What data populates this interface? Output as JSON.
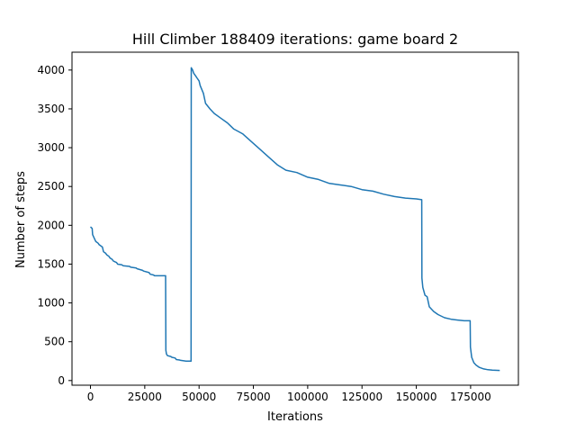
{
  "chart_data": {
    "type": "line",
    "title": "Hill Climber 188409 iterations: game board 2",
    "xlabel": "Iterations",
    "ylabel": "Number of steps",
    "xlim": [
      -8500,
      197000
    ],
    "ylim": [
      -60,
      4230
    ],
    "x_ticks": [
      0,
      25000,
      50000,
      75000,
      100000,
      125000,
      150000,
      175000
    ],
    "y_ticks": [
      0,
      500,
      1000,
      1500,
      2000,
      2500,
      3000,
      3500,
      4000
    ],
    "grid": false,
    "line_color": "#1f77b4",
    "series": [
      {
        "x": [
          0,
          800,
          1000,
          2000,
          2500,
          3500,
          4000,
          5500,
          6000,
          7000,
          7500,
          8500,
          9000,
          10000,
          10500,
          12000,
          12500,
          14500,
          15000,
          18000,
          18500,
          21000,
          21500,
          24000,
          24500,
          27000,
          27500,
          29000,
          29500,
          34600,
          34700,
          35000,
          35500,
          37000,
          37500,
          39000,
          39500,
          41000,
          41500,
          44000,
          44500,
          46300,
          46400,
          47000,
          47500,
          48500,
          49000,
          50000,
          50500,
          52000,
          53000,
          55000,
          57000,
          60000,
          63000,
          66000,
          70000,
          74000,
          78000,
          82000,
          86000,
          90000,
          95000,
          100000,
          105000,
          110000,
          115000,
          120000,
          125000,
          130000,
          135000,
          140000,
          145000,
          150000,
          152500,
          152600,
          153000,
          154000,
          155000,
          156000,
          158000,
          160000,
          163000,
          166000,
          169000,
          172000,
          174800,
          174900,
          175500,
          176500,
          177500,
          179000,
          181000,
          183000,
          185000,
          188409
        ],
        "y": [
          1980,
          1960,
          1880,
          1820,
          1790,
          1770,
          1750,
          1720,
          1660,
          1640,
          1620,
          1600,
          1580,
          1560,
          1540,
          1520,
          1500,
          1490,
          1480,
          1470,
          1460,
          1450,
          1440,
          1420,
          1410,
          1390,
          1370,
          1360,
          1350,
          1350,
          390,
          340,
          320,
          310,
          300,
          290,
          270,
          265,
          260,
          250,
          250,
          250,
          4030,
          4000,
          3960,
          3920,
          3900,
          3860,
          3800,
          3700,
          3570,
          3500,
          3440,
          3380,
          3320,
          3240,
          3180,
          3080,
          2980,
          2880,
          2780,
          2710,
          2680,
          2620,
          2590,
          2540,
          2520,
          2500,
          2460,
          2440,
          2400,
          2370,
          2350,
          2340,
          2330,
          1320,
          1200,
          1100,
          1080,
          950,
          890,
          850,
          810,
          790,
          780,
          770,
          770,
          430,
          300,
          230,
          200,
          170,
          150,
          140,
          135,
          130
        ]
      }
    ]
  }
}
